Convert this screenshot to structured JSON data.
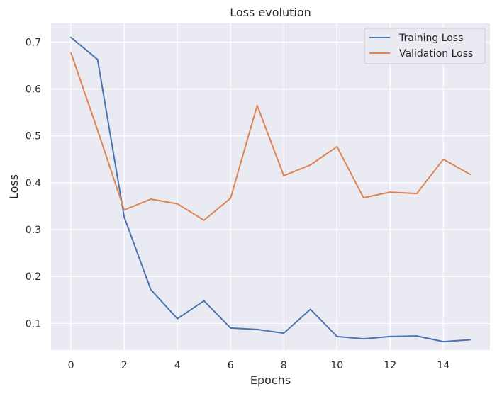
{
  "chart_data": {
    "type": "line",
    "title": "Loss evolution",
    "xlabel": "Epochs",
    "ylabel": "Loss",
    "x": [
      0,
      1,
      2,
      3,
      4,
      5,
      6,
      7,
      8,
      9,
      10,
      11,
      12,
      13,
      14,
      15
    ],
    "xlim": [
      -0.75,
      15.75
    ],
    "ylim": [
      0.043,
      0.74
    ],
    "xticks": [
      0,
      2,
      4,
      6,
      8,
      10,
      12,
      14
    ],
    "xtick_labels": [
      "0",
      "2",
      "4",
      "6",
      "8",
      "10",
      "12",
      "14"
    ],
    "yticks": [
      0.1,
      0.2,
      0.3,
      0.4,
      0.5,
      0.6,
      0.7
    ],
    "ytick_labels": [
      "0.1",
      "0.2",
      "0.3",
      "0.4",
      "0.5",
      "0.6",
      "0.7"
    ],
    "grid": true,
    "legend_position": "top-right",
    "series": [
      {
        "name": "Training Loss",
        "color": "#4c72b0",
        "values": [
          0.71,
          0.663,
          0.327,
          0.172,
          0.11,
          0.148,
          0.09,
          0.087,
          0.079,
          0.13,
          0.072,
          0.067,
          0.072,
          0.073,
          0.061,
          0.065
        ]
      },
      {
        "name": "Validation Loss",
        "color": "#dd8452",
        "values": [
          0.677,
          0.512,
          0.342,
          0.365,
          0.355,
          0.32,
          0.367,
          0.565,
          0.415,
          0.438,
          0.477,
          0.368,
          0.38,
          0.377,
          0.45,
          0.418
        ]
      }
    ]
  }
}
